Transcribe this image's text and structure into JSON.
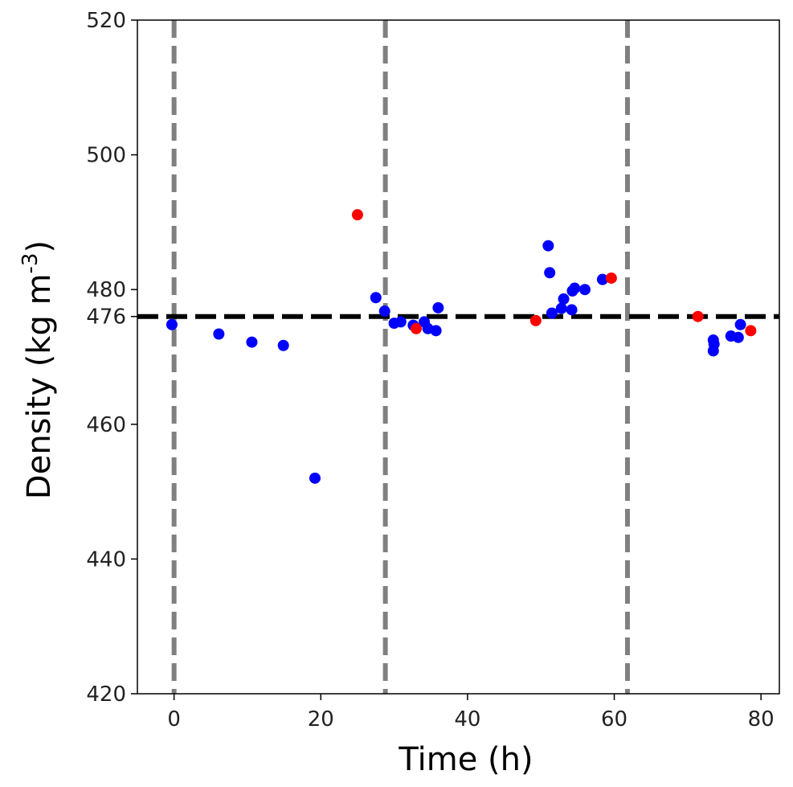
{
  "chart_data": {
    "type": "scatter",
    "xlabel": "Time (h)",
    "ylabel_main": "Density (kg m",
    "ylabel_sup": "-3",
    "ylabel_close": ")",
    "xlim": [
      -5,
      82.5
    ],
    "ylim": [
      420,
      520
    ],
    "xticks": [
      0,
      20,
      40,
      60,
      80
    ],
    "yticks": [
      420,
      440,
      460,
      476,
      480,
      500,
      520
    ],
    "grid": false,
    "reference_line": {
      "y": 476,
      "style": "dashed",
      "color": "#000000"
    },
    "vertical_lines": {
      "x": [
        0,
        28.8,
        61.8
      ],
      "style": "dashed",
      "color": "#808080"
    },
    "series": [
      {
        "color": "#0000ff",
        "points": [
          [
            -0.3,
            474.8
          ],
          [
            6.1,
            473.4
          ],
          [
            10.6,
            472.2
          ],
          [
            14.9,
            471.7
          ],
          [
            19.2,
            452.0
          ],
          [
            27.5,
            478.8
          ],
          [
            28.7,
            476.8
          ],
          [
            30.0,
            475.0
          ],
          [
            30.9,
            475.2
          ],
          [
            32.6,
            474.7
          ],
          [
            34.1,
            475.2
          ],
          [
            34.6,
            474.2
          ],
          [
            35.7,
            473.9
          ],
          [
            36.0,
            477.3
          ],
          [
            51.0,
            486.5
          ],
          [
            51.2,
            482.5
          ],
          [
            51.5,
            476.5
          ],
          [
            52.8,
            477.2
          ],
          [
            53.1,
            478.6
          ],
          [
            54.2,
            477.0
          ],
          [
            54.3,
            479.8
          ],
          [
            54.6,
            480.2
          ],
          [
            56.0,
            480.0
          ],
          [
            58.4,
            481.5
          ],
          [
            73.5,
            472.5
          ],
          [
            73.6,
            471.9
          ],
          [
            73.5,
            470.9
          ],
          [
            75.9,
            473.1
          ],
          [
            76.9,
            472.9
          ],
          [
            77.2,
            474.8
          ]
        ]
      },
      {
        "color": "#ff0000",
        "points": [
          [
            25.0,
            491.1
          ],
          [
            33.0,
            474.2
          ],
          [
            49.3,
            475.4
          ],
          [
            59.6,
            481.7
          ],
          [
            71.4,
            476.0
          ],
          [
            78.6,
            473.9
          ]
        ]
      }
    ]
  }
}
